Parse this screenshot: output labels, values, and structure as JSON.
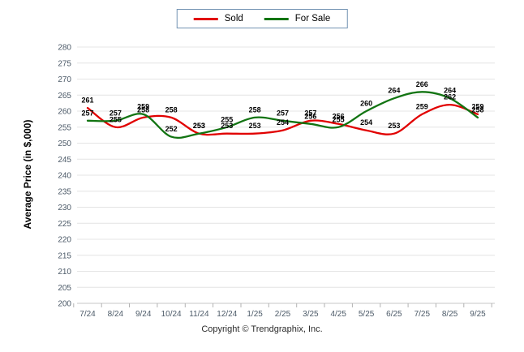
{
  "legend": {
    "items": [
      {
        "label": "Sold",
        "color": "#e10000"
      },
      {
        "label": "For Sale",
        "color": "#127412"
      }
    ]
  },
  "footer": {
    "copyright": "Copyright © Trendgraphix, Inc."
  },
  "chart_data": {
    "type": "line",
    "title": "",
    "xlabel": "",
    "ylabel": "Average Price (in $,000)",
    "categories": [
      "7/24",
      "8/24",
      "9/24",
      "10/24",
      "11/24",
      "12/24",
      "1/25",
      "2/25",
      "3/25",
      "4/25",
      "5/25",
      "6/25",
      "7/25",
      "8/25",
      "9/25"
    ],
    "series": [
      {
        "name": "Sold",
        "color": "#e10000",
        "values": [
          261,
          255,
          258,
          258,
          253,
          253,
          253,
          254,
          257,
          256,
          254,
          253,
          259,
          262,
          259
        ]
      },
      {
        "name": "For Sale",
        "color": "#127412",
        "values": [
          257,
          257,
          259,
          252,
          253,
          255,
          258,
          257,
          256,
          255,
          260,
          264,
          266,
          264,
          258
        ]
      }
    ],
    "ylim": [
      200,
      280
    ],
    "ytick_step": 5,
    "grid": "horizontal",
    "legend_position": "top-center",
    "line_style": "smooth",
    "data_labels": true
  }
}
